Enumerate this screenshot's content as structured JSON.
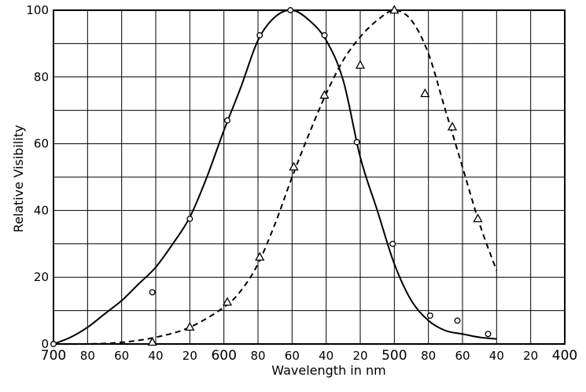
{
  "chart_data": {
    "type": "line",
    "xlabel": "Wavelength in nm",
    "ylabel": "Relative Visibility",
    "xlim": [
      700,
      400
    ],
    "ylim": [
      0,
      100
    ],
    "x_reversed": true,
    "grid": true,
    "x_ticks": [
      700,
      680,
      660,
      640,
      620,
      600,
      580,
      560,
      540,
      520,
      500,
      480,
      460,
      440,
      420,
      400
    ],
    "x_tick_labels": [
      "700",
      "80",
      "60",
      "40",
      "20",
      "600",
      "80",
      "60",
      "40",
      "20",
      "500",
      "80",
      "60",
      "40",
      "20",
      "400"
    ],
    "y_ticks": [
      0,
      20,
      40,
      60,
      80,
      100
    ],
    "y_tick_labels": [
      "0",
      "20",
      "40",
      "60",
      "80",
      "100"
    ],
    "series": [
      {
        "style": "solid",
        "marker": "circle",
        "curve": [
          {
            "x": 700,
            "y": 0
          },
          {
            "x": 690,
            "y": 2
          },
          {
            "x": 680,
            "y": 5
          },
          {
            "x": 670,
            "y": 9
          },
          {
            "x": 660,
            "y": 13
          },
          {
            "x": 650,
            "y": 18
          },
          {
            "x": 640,
            "y": 23
          },
          {
            "x": 630,
            "y": 30
          },
          {
            "x": 620,
            "y": 38
          },
          {
            "x": 610,
            "y": 50
          },
          {
            "x": 600,
            "y": 64
          },
          {
            "x": 590,
            "y": 77
          },
          {
            "x": 580,
            "y": 91
          },
          {
            "x": 570,
            "y": 98
          },
          {
            "x": 560,
            "y": 100
          },
          {
            "x": 550,
            "y": 97
          },
          {
            "x": 540,
            "y": 91
          },
          {
            "x": 530,
            "y": 79
          },
          {
            "x": 520,
            "y": 56
          },
          {
            "x": 510,
            "y": 40
          },
          {
            "x": 500,
            "y": 24
          },
          {
            "x": 490,
            "y": 13
          },
          {
            "x": 480,
            "y": 7
          },
          {
            "x": 470,
            "y": 4
          },
          {
            "x": 460,
            "y": 3
          },
          {
            "x": 450,
            "y": 2
          },
          {
            "x": 440,
            "y": 1.5
          }
        ],
        "points": [
          {
            "x": 700,
            "y": 0
          },
          {
            "x": 642,
            "y": 15.5
          },
          {
            "x": 620,
            "y": 37.5
          },
          {
            "x": 598,
            "y": 67
          },
          {
            "x": 579,
            "y": 92.5
          },
          {
            "x": 561,
            "y": 100
          },
          {
            "x": 541,
            "y": 92.5
          },
          {
            "x": 522,
            "y": 60.5
          },
          {
            "x": 501,
            "y": 30
          },
          {
            "x": 479,
            "y": 8.5
          },
          {
            "x": 463,
            "y": 7
          },
          {
            "x": 445,
            "y": 3
          }
        ]
      },
      {
        "style": "dashed",
        "marker": "triangle",
        "curve": [
          {
            "x": 700,
            "y": 0
          },
          {
            "x": 680,
            "y": 0
          },
          {
            "x": 660,
            "y": 0.5
          },
          {
            "x": 640,
            "y": 2
          },
          {
            "x": 620,
            "y": 5
          },
          {
            "x": 600,
            "y": 11
          },
          {
            "x": 590,
            "y": 16
          },
          {
            "x": 580,
            "y": 24
          },
          {
            "x": 570,
            "y": 36
          },
          {
            "x": 560,
            "y": 50
          },
          {
            "x": 550,
            "y": 63
          },
          {
            "x": 540,
            "y": 75
          },
          {
            "x": 530,
            "y": 85
          },
          {
            "x": 520,
            "y": 92
          },
          {
            "x": 510,
            "y": 97
          },
          {
            "x": 500,
            "y": 100
          },
          {
            "x": 490,
            "y": 97
          },
          {
            "x": 480,
            "y": 87
          },
          {
            "x": 470,
            "y": 70
          },
          {
            "x": 460,
            "y": 53
          },
          {
            "x": 450,
            "y": 36
          },
          {
            "x": 440,
            "y": 22
          }
        ],
        "points": [
          {
            "x": 642,
            "y": 0.5
          },
          {
            "x": 620,
            "y": 5
          },
          {
            "x": 598,
            "y": 12.5
          },
          {
            "x": 579,
            "y": 26
          },
          {
            "x": 559,
            "y": 53
          },
          {
            "x": 541,
            "y": 74.5
          },
          {
            "x": 520,
            "y": 83.5
          },
          {
            "x": 500,
            "y": 100
          },
          {
            "x": 482,
            "y": 75
          },
          {
            "x": 466,
            "y": 65
          },
          {
            "x": 451,
            "y": 37.5
          }
        ]
      }
    ]
  }
}
